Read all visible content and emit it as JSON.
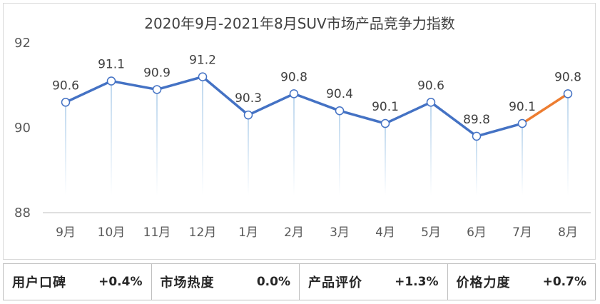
{
  "chart_data": {
    "type": "line",
    "title": "2020年9月-2021年8月SUV市场产品竞争力指数",
    "categories": [
      "9月",
      "10月",
      "11月",
      "12月",
      "1月",
      "2月",
      "3月",
      "4月",
      "5月",
      "6月",
      "7月",
      "8月"
    ],
    "series": [
      {
        "name": "SUV市场产品竞争力指数",
        "values": [
          90.6,
          91.1,
          90.9,
          91.2,
          90.3,
          90.8,
          90.4,
          90.1,
          90.6,
          89.8,
          90.1,
          90.8
        ]
      }
    ],
    "value_labels": [
      "90.6",
      "91.1",
      "90.9",
      "91.2",
      "90.3",
      "90.8",
      "90.4",
      "90.1",
      "90.6",
      "89.8",
      "90.1",
      "90.8"
    ],
    "highlight_last_segment": true,
    "ylim": [
      88,
      92
    ],
    "yticks": [
      88,
      90,
      92
    ],
    "xlabel": "",
    "ylabel": "",
    "grid": false,
    "colors": {
      "line": "#4472c4",
      "highlight": "#ed7d31",
      "drop": "#bdd7ee",
      "axis": "#bfbfbf"
    }
  },
  "stats": [
    {
      "label": "用户口碑",
      "value": "+0.4%"
    },
    {
      "label": "市场热度",
      "value": "0.0%"
    },
    {
      "label": "产品评价",
      "value": "+1.3%"
    },
    {
      "label": "价格力度",
      "value": "+0.7%"
    }
  ]
}
